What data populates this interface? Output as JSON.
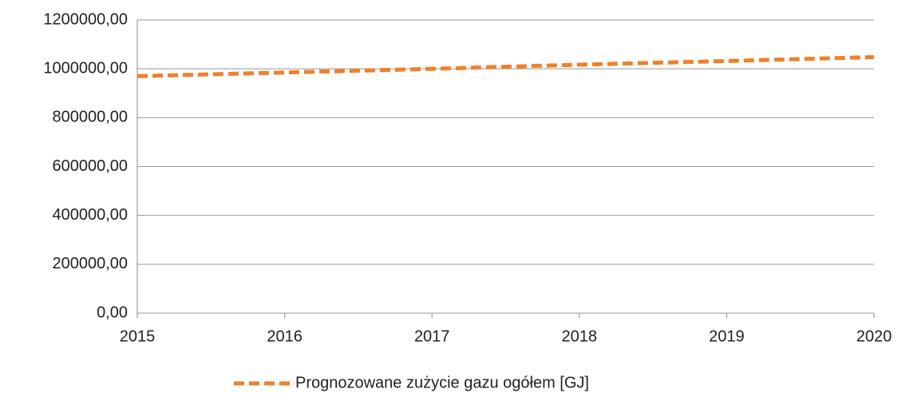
{
  "chart_data": {
    "type": "line",
    "x": [
      2015,
      2016,
      2017,
      2018,
      2019,
      2020
    ],
    "series": [
      {
        "name": "Prognozowane zużycie gazu ogółem [GJ]",
        "color": "#f0802a",
        "values": [
          970000,
          985000,
          1000000,
          1017000,
          1032000,
          1048000
        ]
      }
    ],
    "xlim": [
      2015,
      2020
    ],
    "xticks": [
      2015,
      2016,
      2017,
      2018,
      2019,
      2020
    ],
    "ylim": [
      0,
      1200000
    ],
    "yticks": [
      {
        "value": 0,
        "label": "0,00"
      },
      {
        "value": 200000,
        "label": "200000,00"
      },
      {
        "value": 400000,
        "label": "400000,00"
      },
      {
        "value": 600000,
        "label": "600000,00"
      },
      {
        "value": 800000,
        "label": "800000,00"
      },
      {
        "value": 1000000,
        "label": "1000000,00"
      },
      {
        "value": 1200000,
        "label": "1200000,00"
      }
    ],
    "grid": true,
    "legend": "bottom",
    "dashed": true
  }
}
